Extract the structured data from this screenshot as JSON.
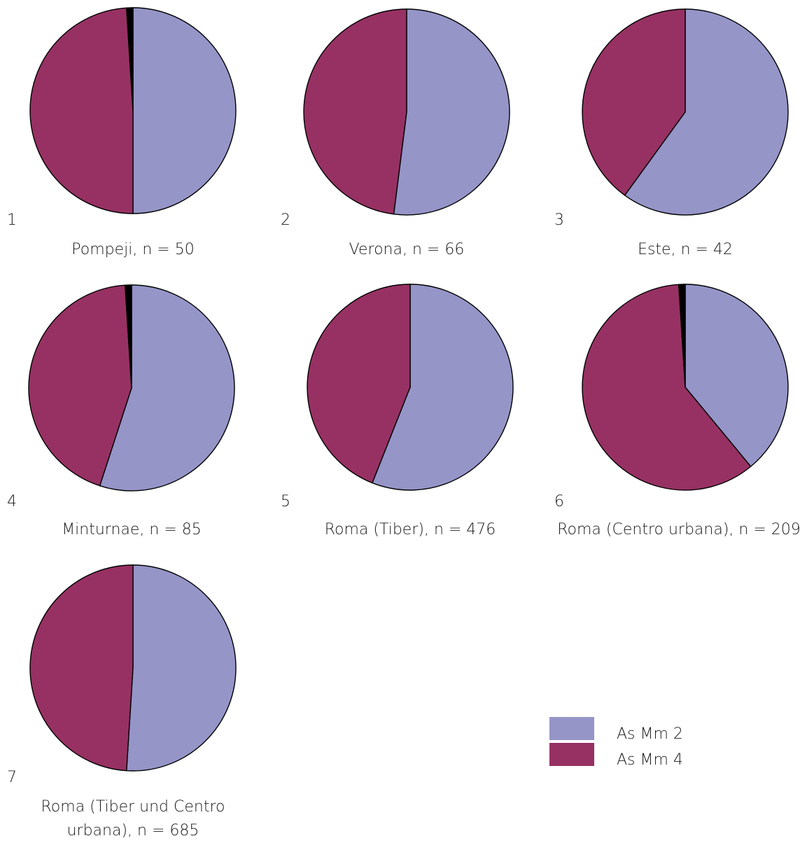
{
  "chart_data": [
    {
      "type": "pie",
      "number": "1",
      "title": "Pompeji, n = 50",
      "slices": [
        {
          "label": "As Mm 2",
          "value": 0.5
        },
        {
          "label": "As Mm 4",
          "value": 0.49
        },
        {
          "label": "",
          "value": 0.01
        }
      ]
    },
    {
      "type": "pie",
      "number": "2",
      "title": "Verona, n = 66",
      "slices": [
        {
          "label": "As Mm 2",
          "value": 0.52
        },
        {
          "label": "As Mm 4",
          "value": 0.48
        }
      ]
    },
    {
      "type": "pie",
      "number": "3",
      "title": "Este, n = 42",
      "slices": [
        {
          "label": "As Mm 2",
          "value": 0.6
        },
        {
          "label": "As Mm 4",
          "value": 0.4
        }
      ]
    },
    {
      "type": "pie",
      "number": "4",
      "title": "Minturnae, n = 85",
      "slices": [
        {
          "label": "As Mm 2",
          "value": 0.55
        },
        {
          "label": "As Mm 4",
          "value": 0.44
        },
        {
          "label": "",
          "value": 0.01
        }
      ]
    },
    {
      "type": "pie",
      "number": "5",
      "title": "Roma (Tiber), n = 476",
      "slices": [
        {
          "label": "As Mm 2",
          "value": 0.56
        },
        {
          "label": "As Mm 4",
          "value": 0.44
        }
      ]
    },
    {
      "type": "pie",
      "number": "6",
      "title": "Roma (Centro urbana), n = 209",
      "slices": [
        {
          "label": "As Mm 2",
          "value": 0.39
        },
        {
          "label": "As Mm 4",
          "value": 0.6
        },
        {
          "label": "",
          "value": 0.01
        }
      ]
    },
    {
      "type": "pie",
      "number": "7",
      "title": "Roma (Tiber und Centro urbana), n = 685",
      "title_lines": [
        "Roma (Tiber und Centro",
        "urbana), n = 685"
      ],
      "slices": [
        {
          "label": "As Mm 2",
          "value": 0.51
        },
        {
          "label": "As Mm 4",
          "value": 0.49
        }
      ]
    }
  ],
  "legend": {
    "items": [
      {
        "label": "As Mm 2",
        "color": "#9595c8"
      },
      {
        "label": "As Mm 4",
        "color": "#973163"
      }
    ]
  },
  "colors": {
    "As Mm 2": "#9595c8",
    "As Mm 4": "#973163",
    "other": "#000000",
    "outline": "#000000"
  }
}
